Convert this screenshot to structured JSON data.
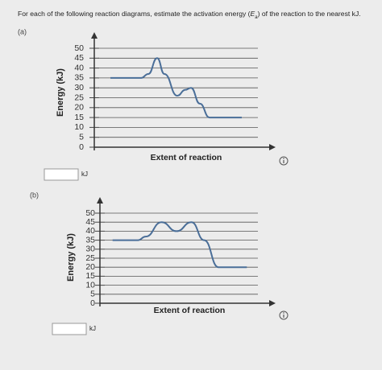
{
  "instruction": {
    "before": "For each of the following reaction diagrams, estimate the activation energy (",
    "symbol": "E",
    "subscript": "a",
    "after": ") of the reaction to the nearest kJ."
  },
  "parts": [
    {
      "label": "(a)",
      "unit": "kJ",
      "chart_data": {
        "type": "line",
        "y_label": "Energy (kJ)",
        "x_label": "Extent of reaction",
        "color": "#4a6e98",
        "x": [
          0.85,
          2.75,
          3.2,
          3.75,
          4.2,
          5.0,
          5.5,
          5.85,
          6.4,
          7.0,
          9.0
        ],
        "values": [
          35,
          35,
          37,
          45,
          37,
          26,
          29,
          30,
          22,
          15,
          15
        ],
        "xlim": [
          0,
          10
        ],
        "ylim": [
          0,
          50
        ],
        "yticks": [
          0,
          5,
          10,
          15,
          20,
          25,
          30,
          35,
          40,
          45,
          50
        ],
        "grid": true
      }
    },
    {
      "label": "(b)",
      "unit": "kJ",
      "chart_data": {
        "type": "line",
        "y_label": "Energy (kJ)",
        "x_label": "Extent of reaction",
        "color": "#4a6e98",
        "x": [
          0.8,
          2.4,
          2.9,
          3.9,
          4.85,
          5.8,
          6.6,
          7.5,
          9.3
        ],
        "values": [
          35,
          35,
          37,
          45,
          40,
          45,
          35,
          20,
          20
        ],
        "xlim": [
          0,
          10
        ],
        "ylim": [
          0,
          50
        ],
        "yticks": [
          0,
          5,
          10,
          15,
          20,
          25,
          30,
          35,
          40,
          45,
          50
        ],
        "grid": true
      }
    }
  ]
}
